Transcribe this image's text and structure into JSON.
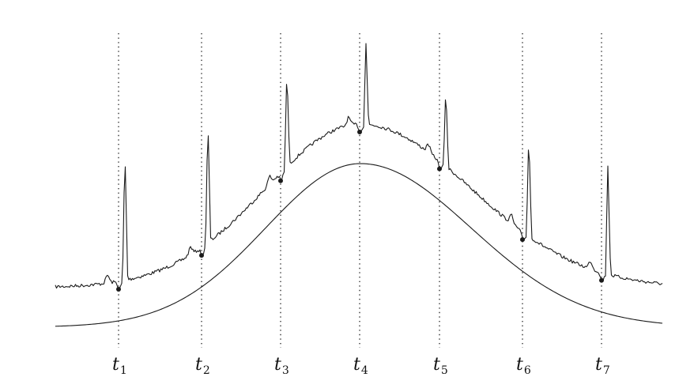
{
  "time_markers": [
    {
      "letter": "t",
      "sub": "1"
    },
    {
      "letter": "t",
      "sub": "2"
    },
    {
      "letter": "t",
      "sub": "3"
    },
    {
      "letter": "t",
      "sub": "4"
    },
    {
      "letter": "t",
      "sub": "5"
    },
    {
      "letter": "t",
      "sub": "6"
    },
    {
      "letter": "t",
      "sub": "7"
    }
  ],
  "colors": {
    "ink": "#1a1a1a",
    "background": "#ffffff"
  }
}
